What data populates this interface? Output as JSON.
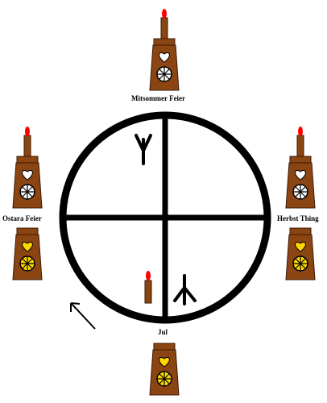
{
  "labels": {
    "top": "Mitsommer Feier",
    "left": "Ostara Feier",
    "right": "Herbst Thing",
    "bottom": "Jul"
  },
  "colors": {
    "ring": "#000000",
    "body": "#8b4513",
    "body_outline": "#3a1a05",
    "candle": "#8b4513",
    "flame": "#ff0000",
    "heart_white": "#ffffff",
    "heart_yellow": "#ffd700",
    "wheel_white": "#ffffff",
    "wheel_yellow": "#ffd700"
  },
  "icons": [
    "ring-cross-icon",
    "tree-rune-icon",
    "inverted-tree-rune-icon",
    "candle-icon",
    "arrow-icon",
    "lantern-icon"
  ]
}
